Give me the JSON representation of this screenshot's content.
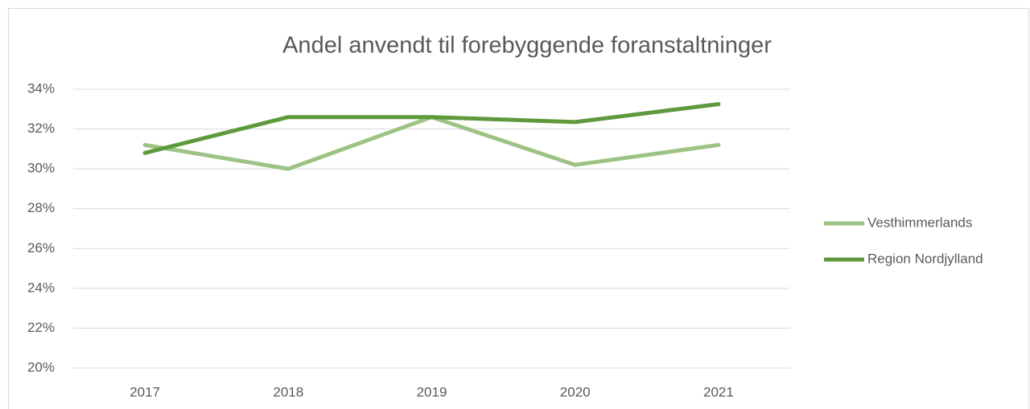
{
  "chart_data": {
    "type": "line",
    "title": "Andel anvendt til forebyggende foranstaltninger",
    "categories": [
      "2017",
      "2018",
      "2019",
      "2020",
      "2021"
    ],
    "series": [
      {
        "name": "Vesthimmerlands",
        "color": "#9dc384",
        "values": [
          31.2,
          30.0,
          32.6,
          30.2,
          31.2
        ]
      },
      {
        "name": "Region Nordjylland",
        "color": "#5e9a3c",
        "values": [
          30.8,
          32.6,
          32.6,
          32.35,
          33.25
        ]
      }
    ],
    "ylim": [
      20,
      34
    ],
    "yticks": [
      {
        "value": 20,
        "label": "20%"
      },
      {
        "value": 22,
        "label": "22%"
      },
      {
        "value": 24,
        "label": "24%"
      },
      {
        "value": 26,
        "label": "26%"
      },
      {
        "value": 28,
        "label": "28%"
      },
      {
        "value": 30,
        "label": "30%"
      },
      {
        "value": 32,
        "label": "32%"
      },
      {
        "value": 34,
        "label": "34%"
      }
    ],
    "grid": true,
    "legend": "right"
  }
}
